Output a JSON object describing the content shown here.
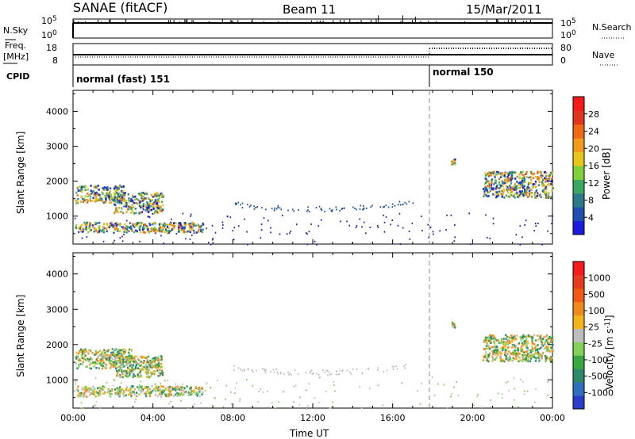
{
  "header": {
    "title": "SANAE (fitACF)",
    "beam": "Beam 11",
    "date": "15/Mar/2011"
  },
  "panels": {
    "nsky": {
      "label": "N.Sky",
      "tick_top": "10^5",
      "tick_bottom": "10^0"
    },
    "nsearch": {
      "label": "N.Search",
      "tick_top": "10^5",
      "tick_bottom": "10^0"
    },
    "freq": {
      "label_line1": "Freq.",
      "label_line2": "[MHz]",
      "tick_top": "18",
      "tick_bottom": "8"
    },
    "nave": {
      "label": "Nave",
      "tick_top": "80",
      "tick_bottom": "0"
    },
    "cpid": {
      "label": "CPID",
      "mode_1": "normal (fast) 151",
      "mode_2": "normal 150",
      "mode_switch_hour": 18.0
    }
  },
  "colors": {
    "power_scale": [
      "#1a1ae0",
      "#1f4fb0",
      "#2b7a8c",
      "#3aa860",
      "#7fd13a",
      "#e8c61a",
      "#f29a1a",
      "#f06a14",
      "#e2361c",
      "#f81a1a"
    ],
    "velocity_scale": [
      "#2a3fc9",
      "#2f6fc0",
      "#2a8a6a",
      "#3aa840",
      "#82d25a",
      "#bdbdbd",
      "#f5b41a",
      "#f08a1a",
      "#f05a14",
      "#e83a1e",
      "#f81a1a"
    ]
  },
  "chart_data": [
    {
      "type": "heatmap",
      "name": "power",
      "ylabel": "Slant Range [km]",
      "colorbar_label": "Power [dB]",
      "colorbar_ticks": [
        "28",
        "24",
        "20",
        "16",
        "12",
        "8",
        "4"
      ],
      "y_ticks": [
        "4000",
        "3000",
        "2000",
        "1000"
      ],
      "ylim": [
        200,
        4600
      ],
      "xlim": [
        0,
        24
      ],
      "regions": [
        {
          "x": [
            0.1,
            2.5
          ],
          "y": [
            1400,
            1900
          ]
        },
        {
          "x": [
            2.0,
            4.5
          ],
          "y": [
            1100,
            1700
          ]
        },
        {
          "x": [
            0.1,
            6.5
          ],
          "y": [
            550,
            850
          ]
        },
        {
          "x": [
            18.9,
            19.1
          ],
          "y": [
            2500,
            2650
          ]
        },
        {
          "x": [
            20.5,
            24.0
          ],
          "y": [
            1550,
            2300
          ]
        }
      ]
    },
    {
      "type": "heatmap",
      "name": "velocity",
      "ylabel": "Slant Range [km]",
      "colorbar_label": "Velocity [m s^-1]",
      "colorbar_ticks": [
        "1000",
        "500",
        "100",
        "25",
        "-25",
        "-100",
        "-500",
        "-1000"
      ],
      "y_ticks": [
        "4000",
        "3000",
        "2000",
        "1000"
      ],
      "ylim": [
        200,
        4600
      ],
      "xlim": [
        0,
        24
      ],
      "regions": [
        {
          "x": [
            0.1,
            3.0
          ],
          "y": [
            1350,
            1900
          ]
        },
        {
          "x": [
            2.0,
            4.5
          ],
          "y": [
            1100,
            1700
          ]
        },
        {
          "x": [
            0.1,
            6.5
          ],
          "y": [
            550,
            850
          ]
        },
        {
          "x": [
            18.9,
            19.1
          ],
          "y": [
            2500,
            2650
          ]
        },
        {
          "x": [
            20.5,
            24.0
          ],
          "y": [
            1550,
            2300
          ]
        }
      ]
    }
  ],
  "axis": {
    "x_ticks": [
      "00:00",
      "04:00",
      "08:00",
      "12:00",
      "16:00",
      "20:00",
      "00:00"
    ],
    "x_tick_hours": [
      0,
      4,
      8,
      12,
      16,
      20,
      24
    ],
    "xlabel": "Time UT"
  }
}
